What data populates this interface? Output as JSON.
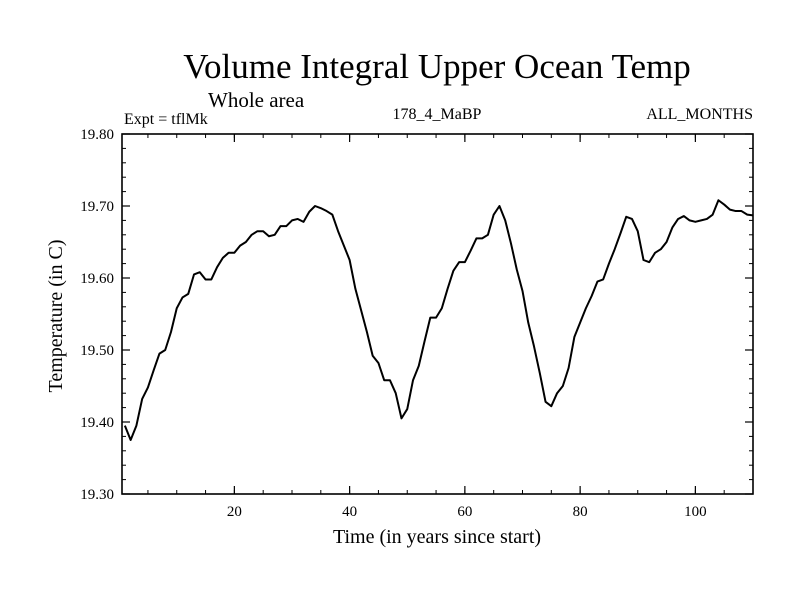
{
  "chart_data": {
    "type": "line",
    "title": "Volume Integral Upper Ocean Temp",
    "subtitle": "Whole area",
    "experiment": "Expt = tflMk",
    "run_id": "178_4_MaBP",
    "months": "ALL_MONTHS",
    "xlabel": "Time (in years since start)",
    "ylabel": "Temperature (in C)",
    "xlim": [
      0.5,
      110
    ],
    "ylim": [
      19.3,
      19.8
    ],
    "x_ticks": [
      20,
      40,
      60,
      80,
      100
    ],
    "x_tick_labels": [
      "20",
      "40",
      "60",
      "80",
      "100"
    ],
    "y_ticks": [
      19.3,
      19.4,
      19.5,
      19.6,
      19.7,
      19.8
    ],
    "y_tick_labels": [
      "19.30",
      "19.40",
      "19.50",
      "19.60",
      "19.70",
      "19.80"
    ],
    "grid": false,
    "series": [
      {
        "name": "Volume Integral Upper Ocean Temp",
        "color": "#000000",
        "x": [
          1,
          2,
          3,
          4,
          5,
          6,
          7,
          8,
          9,
          10,
          11,
          12,
          13,
          14,
          15,
          16,
          17,
          18,
          19,
          20,
          21,
          22,
          23,
          24,
          25,
          26,
          27,
          28,
          29,
          30,
          31,
          32,
          33,
          34,
          35,
          36,
          37,
          38,
          39,
          40,
          41,
          42,
          43,
          44,
          45,
          46,
          47,
          48,
          49,
          50,
          51,
          52,
          53,
          54,
          55,
          56,
          57,
          58,
          59,
          60,
          61,
          62,
          63,
          64,
          65,
          66,
          67,
          68,
          69,
          70,
          71,
          72,
          73,
          74,
          75,
          76,
          77,
          78,
          79,
          80,
          81,
          82,
          83,
          84,
          85,
          86,
          87,
          88,
          89,
          90,
          91,
          92,
          93,
          94,
          95,
          96,
          97,
          98,
          99,
          100,
          101,
          102,
          103,
          104,
          105,
          106,
          107,
          108,
          109,
          110
        ],
        "values": [
          19.395,
          19.375,
          19.395,
          19.432,
          19.448,
          19.472,
          19.495,
          19.5,
          19.525,
          19.558,
          19.573,
          19.578,
          19.605,
          19.608,
          19.598,
          19.598,
          19.615,
          19.628,
          19.635,
          19.635,
          19.645,
          19.65,
          19.66,
          19.665,
          19.665,
          19.658,
          19.66,
          19.672,
          19.672,
          19.68,
          19.682,
          19.678,
          19.692,
          19.7,
          19.697,
          19.693,
          19.688,
          19.665,
          19.645,
          19.625,
          19.585,
          19.555,
          19.525,
          19.492,
          19.482,
          19.458,
          19.458,
          19.44,
          19.405,
          19.418,
          19.458,
          19.478,
          19.512,
          19.545,
          19.545,
          19.558,
          19.585,
          19.61,
          19.622,
          19.622,
          19.638,
          19.655,
          19.655,
          19.66,
          19.688,
          19.7,
          19.68,
          19.648,
          19.612,
          19.582,
          19.538,
          19.505,
          19.468,
          19.428,
          19.422,
          19.44,
          19.45,
          19.475,
          19.518,
          19.538,
          19.558,
          19.575,
          19.595,
          19.598,
          19.62,
          19.64,
          19.662,
          19.685,
          19.682,
          19.665,
          19.625,
          19.622,
          19.635,
          19.64,
          19.65,
          19.67,
          19.682,
          19.686,
          19.68,
          19.678,
          19.68,
          19.682,
          19.688,
          19.708,
          19.702,
          19.695,
          19.693,
          19.693,
          19.688,
          19.687
        ]
      }
    ]
  }
}
